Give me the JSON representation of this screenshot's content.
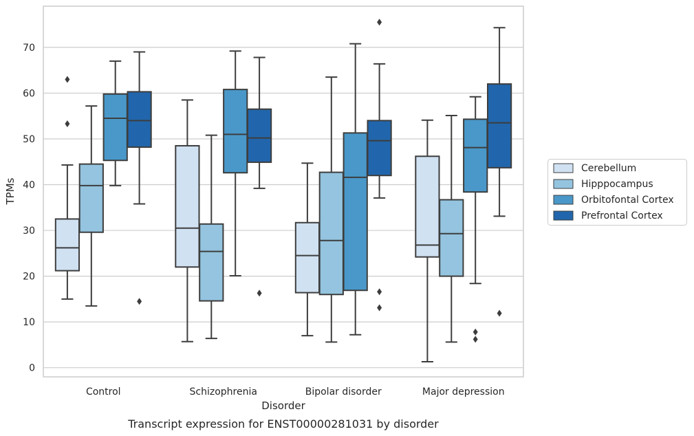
{
  "chart_data": {
    "type": "box",
    "xlabel": "Disorder",
    "ylabel": "TPMs",
    "caption": "Transcript expression for ENST00000281031 by disorder",
    "ylim": [
      -2,
      79
    ],
    "yticks": [
      0,
      10,
      20,
      30,
      40,
      50,
      60,
      70
    ],
    "grid": "horizontal",
    "legend_position": "right",
    "categories": [
      "Control",
      "Schizophrenia",
      "Bipolar disorder",
      "Major depression"
    ],
    "series": [
      {
        "name": "Cerebellum",
        "color": "#d0e1f2",
        "boxes": [
          {
            "whislo": 15,
            "q1": 21.2,
            "med": 26.2,
            "q3": 32.5,
            "whishi": 44.3,
            "fliers": [
              53.3,
              63
            ]
          },
          {
            "whislo": 5.7,
            "q1": 22,
            "med": 30.5,
            "q3": 48.5,
            "whishi": 58.5,
            "fliers": []
          },
          {
            "whislo": 7,
            "q1": 16.4,
            "med": 24.5,
            "q3": 31.7,
            "whishi": 44.7,
            "fliers": []
          },
          {
            "whislo": 1.3,
            "q1": 24.2,
            "med": 26.8,
            "q3": 46.2,
            "whishi": 54.1,
            "fliers": []
          }
        ]
      },
      {
        "name": "Hipppocampus",
        "color": "#94c4df",
        "boxes": [
          {
            "whislo": 13.5,
            "q1": 29.6,
            "med": 39.8,
            "q3": 44.5,
            "whishi": 57.2,
            "fliers": []
          },
          {
            "whislo": 6.4,
            "q1": 14.6,
            "med": 25.4,
            "q3": 31.4,
            "whishi": 50.8,
            "fliers": []
          },
          {
            "whislo": 5.6,
            "q1": 16,
            "med": 27.8,
            "q3": 42.7,
            "whishi": 63.5,
            "fliers": []
          },
          {
            "whislo": 5.6,
            "q1": 20,
            "med": 29.3,
            "q3": 36.7,
            "whishi": 55.1,
            "fliers": []
          }
        ]
      },
      {
        "name": "Orbitofontal Cortex",
        "color": "#4a98c9",
        "boxes": [
          {
            "whislo": 39.8,
            "q1": 45.3,
            "med": 54.5,
            "q3": 59.8,
            "whishi": 67,
            "fliers": []
          },
          {
            "whislo": 20.1,
            "q1": 42.6,
            "med": 51,
            "q3": 60.8,
            "whishi": 69.2,
            "fliers": []
          },
          {
            "whislo": 7.2,
            "q1": 16.9,
            "med": 41.6,
            "q3": 51.3,
            "whishi": 70.8,
            "fliers": []
          },
          {
            "whislo": 18.4,
            "q1": 38.4,
            "med": 48.1,
            "q3": 54.3,
            "whishi": 59.2,
            "fliers": [
              6.2,
              7.8
            ]
          }
        ]
      },
      {
        "name": "Prefrontal Cortex",
        "color": "#2166ac",
        "boxes": [
          {
            "whislo": 35.8,
            "q1": 48.2,
            "med": 54,
            "q3": 60.3,
            "whishi": 69,
            "fliers": [
              14.5
            ]
          },
          {
            "whislo": 39.2,
            "q1": 44.9,
            "med": 50.2,
            "q3": 56.5,
            "whishi": 67.8,
            "fliers": [
              16.3
            ]
          },
          {
            "whislo": 37.1,
            "q1": 42,
            "med": 49.6,
            "q3": 54,
            "whishi": 66.4,
            "fliers": [
              13.1,
              16.6,
              75.5
            ]
          },
          {
            "whislo": 33.1,
            "q1": 43.7,
            "med": 53.5,
            "q3": 62,
            "whishi": 74.3,
            "fliers": [
              11.9
            ]
          }
        ]
      }
    ]
  }
}
